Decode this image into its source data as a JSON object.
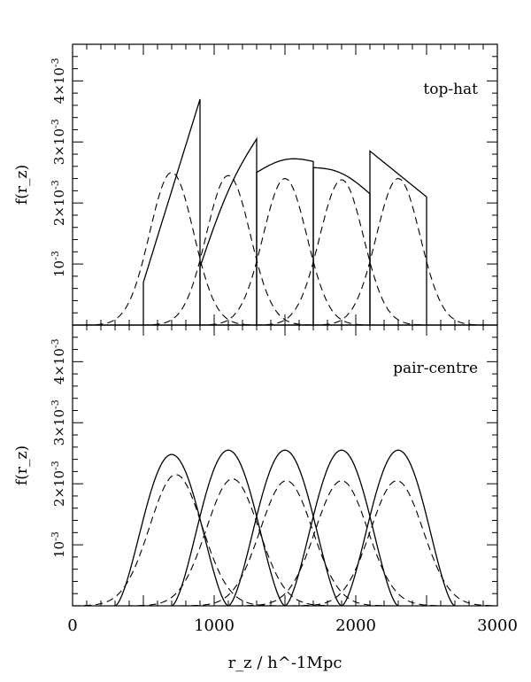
{
  "chart_data": {
    "type": "line",
    "xlabel": "r_z / h^-1Mpc",
    "xlim": [
      0,
      3000
    ],
    "x_tick_labels": [
      "0",
      "1000",
      "2000",
      "3000"
    ],
    "ylabel": "f(r_z)",
    "y_tick_labels": [
      "10^-3",
      "2×10^-3",
      "3×10^-3",
      "4×10^-3"
    ],
    "panels": [
      {
        "label": "top-hat",
        "ylim": [
          0,
          0.0046
        ],
        "solid_curves": [
          {
            "x": [
              500,
              900
            ],
            "y": [
              0.0007,
              0.0037
            ]
          },
          {
            "x": [
              900,
              1300
            ],
            "y": [
              0.00095,
              0.00305
            ]
          },
          {
            "x": [
              1300,
              1700
            ],
            "y": [
              0.0025,
              0.00268
            ]
          },
          {
            "x": [
              1700,
              2100
            ],
            "y": [
              0.00258,
              0.00215
            ]
          },
          {
            "x": [
              2100,
              2500
            ],
            "y": [
              0.00285,
              0.0021
            ]
          }
        ],
        "dashed_curves": [
          {
            "centre": 700,
            "peak": 0.0025,
            "sigma": 155
          },
          {
            "centre": 1100,
            "peak": 0.00245,
            "sigma": 155
          },
          {
            "centre": 1500,
            "peak": 0.0024,
            "sigma": 155
          },
          {
            "centre": 1900,
            "peak": 0.00238,
            "sigma": 155
          },
          {
            "centre": 2300,
            "peak": 0.0024,
            "sigma": 155
          }
        ]
      },
      {
        "label": "pair-centre",
        "ylim": [
          0,
          0.0046
        ],
        "solid_curves": [
          {
            "centre": 700,
            "peak": 0.00248,
            "start": 300,
            "end": 1100
          },
          {
            "centre": 1100,
            "peak": 0.00255,
            "start": 700,
            "end": 1500
          },
          {
            "centre": 1500,
            "peak": 0.00255,
            "start": 1100,
            "end": 1900
          },
          {
            "centre": 1900,
            "peak": 0.00255,
            "start": 1500,
            "end": 2300
          },
          {
            "centre": 2300,
            "peak": 0.00255,
            "start": 1900,
            "end": 2700
          }
        ],
        "dashed_curves": [
          {
            "centre": 730,
            "peak": 0.00215,
            "sigma": 185
          },
          {
            "centre": 1130,
            "peak": 0.00208,
            "sigma": 185
          },
          {
            "centre": 1510,
            "peak": 0.00205,
            "sigma": 185
          },
          {
            "centre": 1900,
            "peak": 0.00205,
            "sigma": 185
          },
          {
            "centre": 2290,
            "peak": 0.00205,
            "sigma": 185
          }
        ]
      }
    ]
  }
}
